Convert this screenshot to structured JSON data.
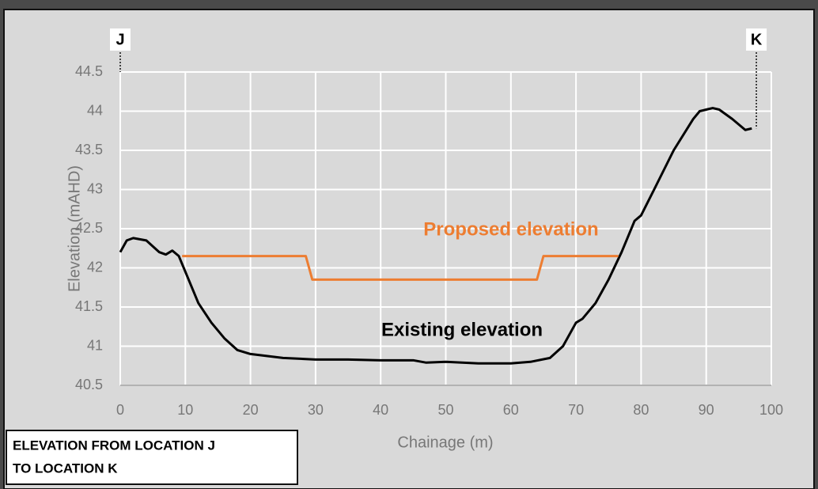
{
  "chart_data": {
    "type": "line",
    "title": [
      "ELEVATION FROM LOCATION J",
      "TO LOCATION K"
    ],
    "xlabel": "Chainage (m)",
    "ylabel": "Elevation (mAHD)",
    "xlim": [
      0,
      100
    ],
    "xticks": [
      0,
      10,
      20,
      30,
      40,
      50,
      60,
      70,
      80,
      90,
      100
    ],
    "ylim": [
      40.5,
      44.5
    ],
    "yticks": [
      40.5,
      41,
      41.5,
      42,
      42.5,
      43,
      43.5,
      44,
      44.5
    ],
    "grid": true,
    "series": [
      {
        "name": "Existing elevation",
        "color": "#000000",
        "x": [
          0,
          1,
          2,
          4,
          6,
          7,
          8,
          9,
          10,
          12,
          14,
          16,
          18,
          20,
          22,
          25,
          30,
          35,
          40,
          45,
          47,
          50,
          55,
          60,
          63,
          66,
          68,
          70,
          71,
          73,
          75,
          77,
          79,
          80,
          82,
          85,
          88,
          89,
          90,
          91,
          92,
          94,
          96,
          97
        ],
        "values": [
          42.2,
          42.35,
          42.38,
          42.35,
          42.2,
          42.17,
          42.22,
          42.15,
          41.95,
          41.55,
          41.3,
          41.1,
          40.95,
          40.9,
          40.88,
          40.85,
          40.83,
          40.83,
          40.82,
          40.82,
          40.79,
          40.8,
          40.78,
          40.78,
          40.8,
          40.85,
          41.0,
          41.3,
          41.35,
          41.55,
          41.85,
          42.2,
          42.6,
          42.67,
          43.0,
          43.5,
          43.9,
          44.0,
          44.02,
          44.04,
          44.02,
          43.9,
          43.76,
          43.78
        ]
      },
      {
        "name": "Proposed elevation",
        "color": "#ed7d31",
        "x": [
          9.5,
          28.5,
          29.5,
          64,
          65,
          76.5
        ],
        "values": [
          42.15,
          42.15,
          41.85,
          41.85,
          42.15,
          42.15
        ]
      }
    ],
    "markers": [
      {
        "label": "J",
        "x": 0,
        "y": 44.5
      },
      {
        "label": "K",
        "x": 97.7,
        "y": 43.78
      }
    ]
  }
}
